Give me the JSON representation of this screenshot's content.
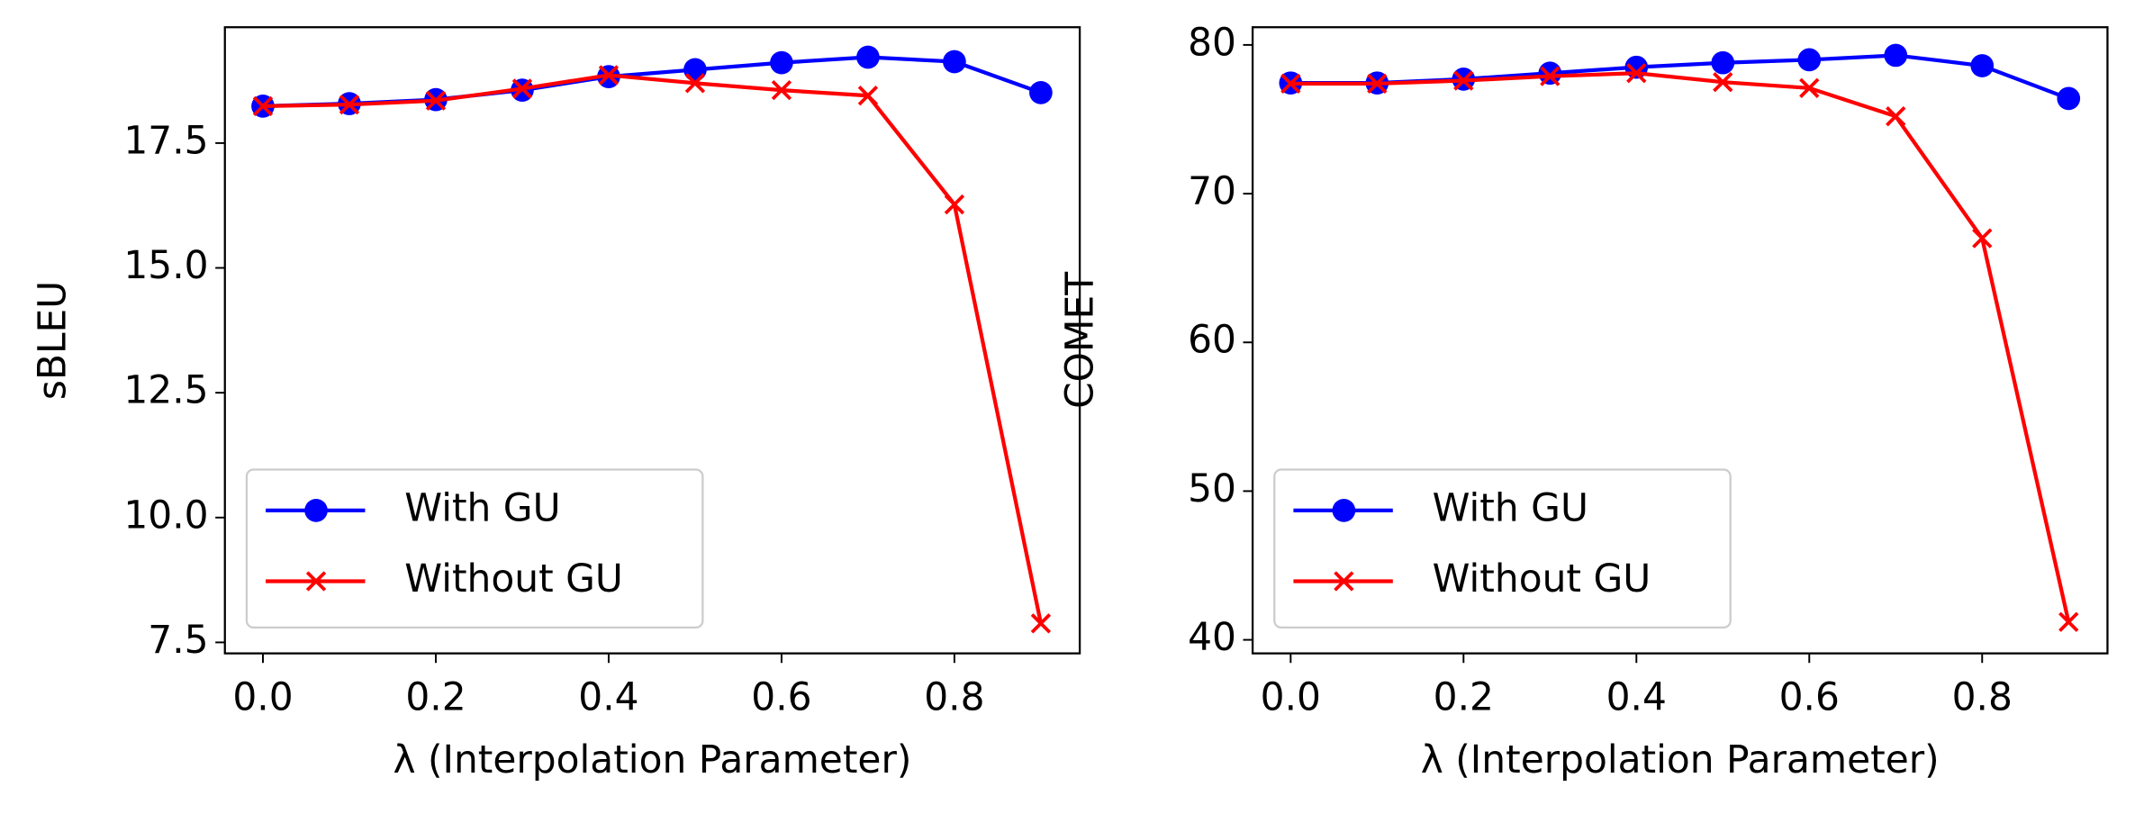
{
  "chart_data": [
    {
      "type": "line",
      "xlabel": "λ (Interpolation Parameter)",
      "ylabel": "sBLEU",
      "x": [
        0,
        0.1,
        0.2,
        0.3,
        0.4,
        0.5,
        0.6,
        0.7,
        0.8,
        0.9
      ],
      "series": [
        {
          "name": "With GU",
          "color": "#0000ff",
          "marker": "o",
          "values": [
            18.24,
            18.29,
            18.37,
            18.56,
            18.83,
            18.97,
            19.11,
            19.22,
            19.13,
            18.51
          ]
        },
        {
          "name": "Without GU",
          "color": "#ff0000",
          "marker": "x",
          "values": [
            18.24,
            18.27,
            18.35,
            18.59,
            18.86,
            18.7,
            18.56,
            18.45,
            16.27,
            7.88
          ]
        }
      ],
      "xlim": [
        -0.044,
        0.945
      ],
      "ylim": [
        7.28,
        19.82
      ],
      "xticks": [
        {
          "value": 0,
          "label": "0.0"
        },
        0.2,
        0.4,
        0.6,
        0.8
      ],
      "yticks": [
        7.5,
        {
          "value": 10,
          "label": "10.0"
        },
        12.5,
        {
          "value": 15,
          "label": "15.0"
        },
        17.5
      ],
      "legend": "lower left"
    },
    {
      "type": "line",
      "xlabel": "λ (Interpolation Parameter)",
      "ylabel": "COMET",
      "x": [
        0,
        0.1,
        0.2,
        0.3,
        0.4,
        0.5,
        0.6,
        0.7,
        0.8,
        0.9
      ],
      "series": [
        {
          "name": "With GU",
          "color": "#0000ff",
          "marker": "o",
          "values": [
            77.44,
            77.44,
            77.7,
            78.1,
            78.5,
            78.8,
            79.0,
            79.3,
            78.6,
            76.4
          ]
        },
        {
          "name": "Without GU",
          "color": "#ff0000",
          "marker": "x",
          "values": [
            77.4,
            77.4,
            77.6,
            77.9,
            78.1,
            77.5,
            77.1,
            75.2,
            67.0,
            41.2
          ]
        }
      ],
      "xlim": [
        -0.044,
        0.945
      ],
      "ylim": [
        39.09,
        81.19
      ],
      "xticks": [
        {
          "value": 0,
          "label": "0.0"
        },
        0.2,
        0.4,
        0.6,
        0.8
      ],
      "yticks": [
        40,
        50,
        60,
        70,
        80
      ],
      "legend": "lower left"
    }
  ]
}
